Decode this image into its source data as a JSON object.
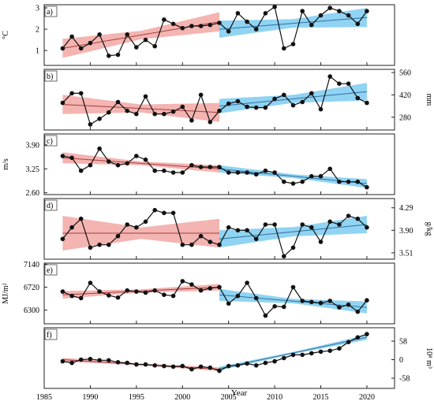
{
  "chart_data": [
    {
      "id": "a",
      "type": "line",
      "panel_label": "a)",
      "ylabel": "°C",
      "ylabel_side": "left",
      "yticks": [
        1,
        2,
        3
      ],
      "ytick_labels": [
        "1",
        "2",
        "3"
      ],
      "ylim": [
        0.3,
        3.15
      ],
      "series": [
        {
          "x": [
            1987,
            1988,
            1989,
            1990,
            1991,
            1992,
            1993,
            1994,
            1995,
            1996,
            1997,
            1998,
            1999,
            2000,
            2001,
            2002,
            2003,
            2004,
            2005,
            2006,
            2007,
            2008,
            2009,
            2010,
            2011,
            2012,
            2013,
            2014,
            2015,
            2016,
            2017,
            2018,
            2019,
            2020
          ],
          "y": [
            1.1,
            1.65,
            1.1,
            1.35,
            1.75,
            0.75,
            0.8,
            1.75,
            1.15,
            1.5,
            1.2,
            2.45,
            2.25,
            2.05,
            2.15,
            2.15,
            2.2,
            2.3,
            1.9,
            2.75,
            2.35,
            2.0,
            2.75,
            3.05,
            1.1,
            1.3,
            2.85,
            2.2,
            2.65,
            3.0,
            2.85,
            2.65,
            2.25,
            2.85
          ]
        }
      ],
      "trends": [
        {
          "period": "1987-2004",
          "color": "#f2a7a3",
          "start": [
            1987,
            1.1
          ],
          "end": [
            2004,
            2.35
          ],
          "band_halfwidth": [
            0.45,
            0.2,
            0.45
          ]
        },
        {
          "period": "2004-2020",
          "color": "#7ccbf0",
          "start": [
            2004,
            2.0
          ],
          "end": [
            2020,
            2.55
          ],
          "band_halfwidth": [
            0.4,
            0.2,
            0.45
          ]
        }
      ]
    },
    {
      "id": "b",
      "type": "line",
      "panel_label": "b)",
      "ylabel": "mm",
      "ylabel_side": "right",
      "yticks": [
        280,
        420,
        560
      ],
      "ytick_labels": [
        "280",
        "420",
        "560"
      ],
      "ylim": [
        200,
        580
      ],
      "series": [
        {
          "x": [
            1987,
            1988,
            1989,
            1990,
            1991,
            1992,
            1993,
            1994,
            1995,
            1996,
            1997,
            1998,
            1999,
            2000,
            2001,
            2002,
            2003,
            2004,
            2005,
            2006,
            2007,
            2008,
            2009,
            2010,
            2011,
            2012,
            2013,
            2014,
            2015,
            2016,
            2017,
            2018,
            2019,
            2020
          ],
          "y": [
            370,
            430,
            430,
            235,
            270,
            310,
            375,
            320,
            300,
            410,
            300,
            300,
            315,
            345,
            260,
            420,
            250,
            320,
            365,
            380,
            345,
            340,
            340,
            395,
            420,
            355,
            375,
            430,
            330,
            535,
            490,
            490,
            400,
            370
          ]
        }
      ],
      "trends": [
        {
          "period": "1987-2004",
          "color": "#f2a7a3",
          "start": [
            1987,
            360
          ],
          "end": [
            2004,
            310
          ],
          "band_halfwidth": [
            60,
            25,
            60
          ]
        },
        {
          "period": "2004-2020",
          "color": "#7ccbf0",
          "start": [
            2004,
            350
          ],
          "end": [
            2020,
            440
          ],
          "band_halfwidth": [
            45,
            25,
            55
          ]
        }
      ]
    },
    {
      "id": "c",
      "type": "line",
      "panel_label": "c)",
      "ylabel": "m/s",
      "ylabel_side": "left",
      "yticks": [
        2.6,
        3.25,
        3.9
      ],
      "ytick_labels": [
        "2.60",
        "3.25",
        "3.90"
      ],
      "ylim": [
        2.55,
        4.2
      ],
      "series": [
        {
          "x": [
            1987,
            1988,
            1989,
            1990,
            1991,
            1992,
            1993,
            1994,
            1995,
            1996,
            1997,
            1998,
            1999,
            2000,
            2001,
            2002,
            2003,
            2004,
            2005,
            2006,
            2007,
            2008,
            2009,
            2010,
            2011,
            2012,
            2013,
            2014,
            2015,
            2016,
            2017,
            2018,
            2019,
            2020
          ],
          "y": [
            3.6,
            3.55,
            3.2,
            3.35,
            3.8,
            3.45,
            3.35,
            3.4,
            3.6,
            3.5,
            3.2,
            3.2,
            3.15,
            3.15,
            3.35,
            3.3,
            3.3,
            3.3,
            3.15,
            3.15,
            3.15,
            3.1,
            3.2,
            3.15,
            2.9,
            2.85,
            2.9,
            3.05,
            3.05,
            3.25,
            2.9,
            2.9,
            2.9,
            2.75
          ]
        }
      ],
      "trends": [
        {
          "period": "1987-2004",
          "color": "#f2a7a3",
          "start": [
            1987,
            3.55
          ],
          "end": [
            2004,
            3.25
          ],
          "band_halfwidth": [
            0.15,
            0.05,
            0.1
          ]
        },
        {
          "period": "2004-2020",
          "color": "#7ccbf0",
          "start": [
            2004,
            3.25
          ],
          "end": [
            2020,
            2.85
          ],
          "band_halfwidth": [
            0.1,
            0.05,
            0.12
          ]
        }
      ]
    },
    {
      "id": "d",
      "type": "line",
      "panel_label": "d)",
      "ylabel": "g/kg",
      "ylabel_side": "right",
      "yticks": [
        3.51,
        3.9,
        4.29
      ],
      "ytick_labels": [
        "3.51",
        "3.90",
        "4.29"
      ],
      "ylim": [
        3.4,
        4.45
      ],
      "series": [
        {
          "x": [
            1987,
            1988,
            1989,
            1990,
            1991,
            1992,
            1993,
            1994,
            1995,
            1996,
            1997,
            1998,
            1999,
            2000,
            2001,
            2002,
            2003,
            2004,
            2005,
            2006,
            2007,
            2008,
            2009,
            2010,
            2011,
            2012,
            2013,
            2014,
            2015,
            2016,
            2017,
            2018,
            2019,
            2020
          ],
          "y": [
            3.75,
            3.95,
            4.1,
            3.6,
            3.65,
            3.65,
            3.8,
            4.0,
            3.95,
            4.05,
            4.25,
            4.2,
            4.2,
            3.65,
            3.65,
            3.8,
            3.7,
            3.65,
            3.95,
            3.9,
            3.9,
            3.75,
            4.0,
            4.0,
            3.45,
            3.6,
            4.0,
            3.95,
            3.7,
            4.05,
            4.0,
            4.15,
            4.1,
            3.95
          ]
        }
      ],
      "trends": [
        {
          "period": "1987-2004",
          "color": "#f2a7a3",
          "start": [
            1987,
            3.85
          ],
          "end": [
            2004,
            3.85
          ],
          "band_halfwidth": [
            0.3,
            0.1,
            0.25
          ]
        },
        {
          "period": "2004-2020",
          "color": "#7ccbf0",
          "start": [
            2004,
            3.75
          ],
          "end": [
            2020,
            4.0
          ],
          "band_halfwidth": [
            0.15,
            0.08,
            0.15
          ]
        }
      ]
    },
    {
      "id": "e",
      "type": "line",
      "panel_label": "e)",
      "ylabel": "MJ/m²",
      "ylabel_side": "left",
      "yticks": [
        6300,
        6720,
        7140
      ],
      "ytick_labels": [
        "6300",
        "6720",
        "7140"
      ],
      "ylim": [
        6050,
        7160
      ],
      "series": [
        {
          "x": [
            1987,
            1988,
            1989,
            1990,
            1991,
            1992,
            1993,
            1994,
            1995,
            1996,
            1997,
            1998,
            1999,
            2000,
            2001,
            2002,
            2003,
            2004,
            2005,
            2006,
            2007,
            2008,
            2009,
            2010,
            2011,
            2012,
            2013,
            2014,
            2015,
            2016,
            2017,
            2018,
            2019,
            2020
          ],
          "y": [
            6640,
            6560,
            6520,
            6800,
            6640,
            6570,
            6530,
            6660,
            6640,
            6620,
            6660,
            6580,
            6560,
            6830,
            6770,
            6660,
            6700,
            6720,
            6420,
            6560,
            6800,
            6520,
            6200,
            6370,
            6360,
            6720,
            6470,
            6450,
            6430,
            6470,
            6350,
            6400,
            6270,
            6480
          ]
        }
      ],
      "trends": [
        {
          "period": "1987-2004",
          "color": "#f2a7a3",
          "start": [
            1987,
            6580
          ],
          "end": [
            2004,
            6720
          ],
          "band_halfwidth": [
            70,
            30,
            60
          ]
        },
        {
          "period": "2004-2020",
          "color": "#7ccbf0",
          "start": [
            2004,
            6580
          ],
          "end": [
            2020,
            6350
          ],
          "band_halfwidth": [
            110,
            40,
            110
          ]
        }
      ]
    },
    {
      "id": "f",
      "type": "line",
      "panel_label": "f)",
      "ylabel": "10⁸ m³",
      "ylabel_side": "right",
      "yticks": [
        -58,
        0,
        58
      ],
      "ytick_labels": [
        "-58",
        "0",
        "58"
      ],
      "ylim": [
        -90,
        100
      ],
      "series": [
        {
          "x": [
            1987,
            1988,
            1989,
            1990,
            1991,
            1992,
            1993,
            1994,
            1995,
            1996,
            1997,
            1998,
            1999,
            2000,
            2001,
            2002,
            2003,
            2004,
            2005,
            2006,
            2007,
            2008,
            2009,
            2010,
            2011,
            2012,
            2013,
            2014,
            2015,
            2016,
            2017,
            2018,
            2019,
            2020
          ],
          "y": [
            -5,
            -10,
            0,
            2,
            -2,
            -2,
            -8,
            -10,
            -15,
            -15,
            -18,
            -20,
            -22,
            -20,
            -30,
            -22,
            -25,
            -35,
            -20,
            -18,
            -12,
            -18,
            -10,
            -5,
            5,
            15,
            15,
            20,
            25,
            28,
            35,
            55,
            70,
            80
          ]
        }
      ],
      "trends": [
        {
          "period": "1987-2004",
          "color": "#f2a7a3",
          "start": [
            1987,
            0
          ],
          "end": [
            2004,
            -30
          ],
          "band_halfwidth": [
            6,
            3,
            6
          ]
        },
        {
          "period": "2004-2020",
          "color": "#7ccbf0",
          "start": [
            2004,
            -28
          ],
          "end": [
            2020,
            70
          ],
          "band_halfwidth": [
            6,
            3,
            8
          ]
        }
      ]
    }
  ],
  "x_axis": {
    "xlabel": "Year",
    "xlim": [
      1985,
      2023
    ],
    "xticks": [
      1985,
      1990,
      1995,
      2000,
      2005,
      2010,
      2015,
      2020
    ],
    "xtick_labels": [
      "1985",
      "1990",
      "1995",
      "2000",
      "2005",
      "2010",
      "2015",
      "2020"
    ]
  }
}
